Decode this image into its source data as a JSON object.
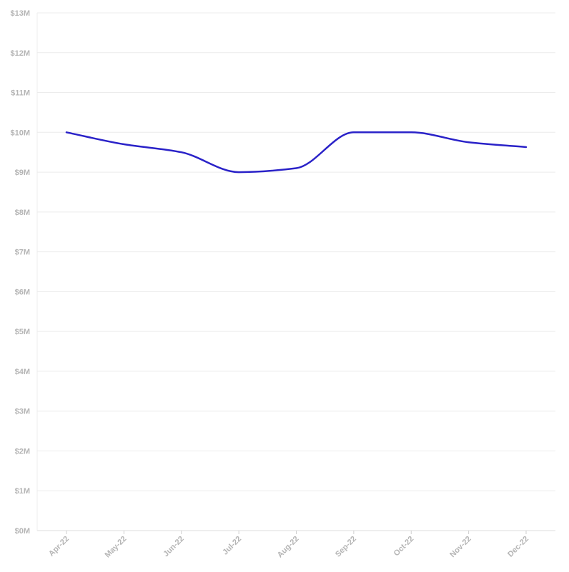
{
  "chart_data": {
    "type": "line",
    "title": "",
    "xlabel": "",
    "ylabel": "",
    "categories": [
      "Apr-22",
      "May-22",
      "Jun-22",
      "Jul-22",
      "Aug-22",
      "Sep-22",
      "Oct-22",
      "Nov-22",
      "Dec-22"
    ],
    "series": [
      {
        "values": [
          10000000,
          9700000,
          9500000,
          9000000,
          9100000,
          10000000,
          10000000,
          9750000,
          9630000
        ]
      }
    ],
    "y_ticks": [
      "$0M",
      "$1M",
      "$2M",
      "$3M",
      "$4M",
      "$5M",
      "$6M",
      "$7M",
      "$8M",
      "$9M",
      "$10M",
      "$11M",
      "$12M",
      "$13M"
    ],
    "ylim": [
      0,
      13000000
    ],
    "grid": true,
    "legend": "none",
    "line_color": "#2a22c8"
  }
}
